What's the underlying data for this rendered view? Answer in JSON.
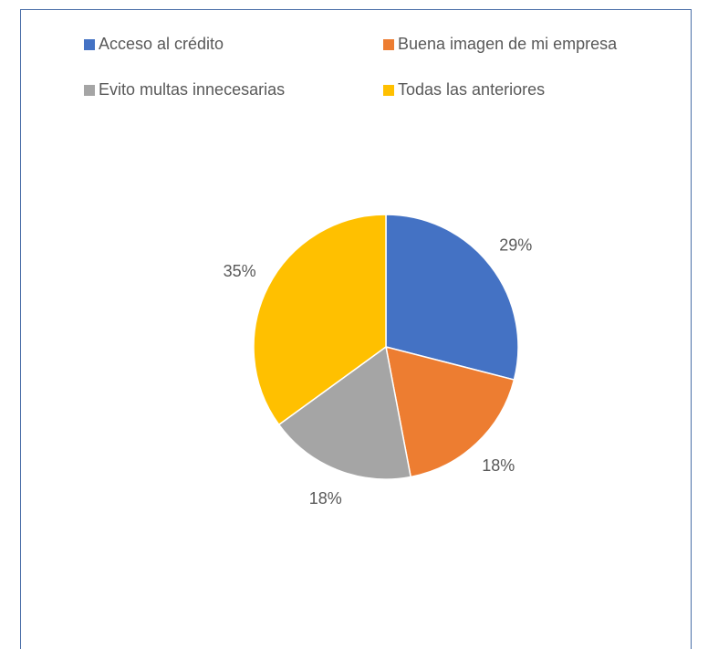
{
  "chart_data": {
    "type": "pie",
    "categories": [
      "Acceso al crédito",
      "Buena imagen de mi empresa",
      "Evito multas innecesarias",
      "Todas las anteriores"
    ],
    "values": [
      29,
      18,
      18,
      35
    ],
    "value_labels": [
      "29%",
      "18%",
      "18%",
      "35%"
    ],
    "colors": [
      "#4472c4",
      "#ed7d31",
      "#a5a5a5",
      "#ffc000"
    ],
    "legend": "top"
  }
}
